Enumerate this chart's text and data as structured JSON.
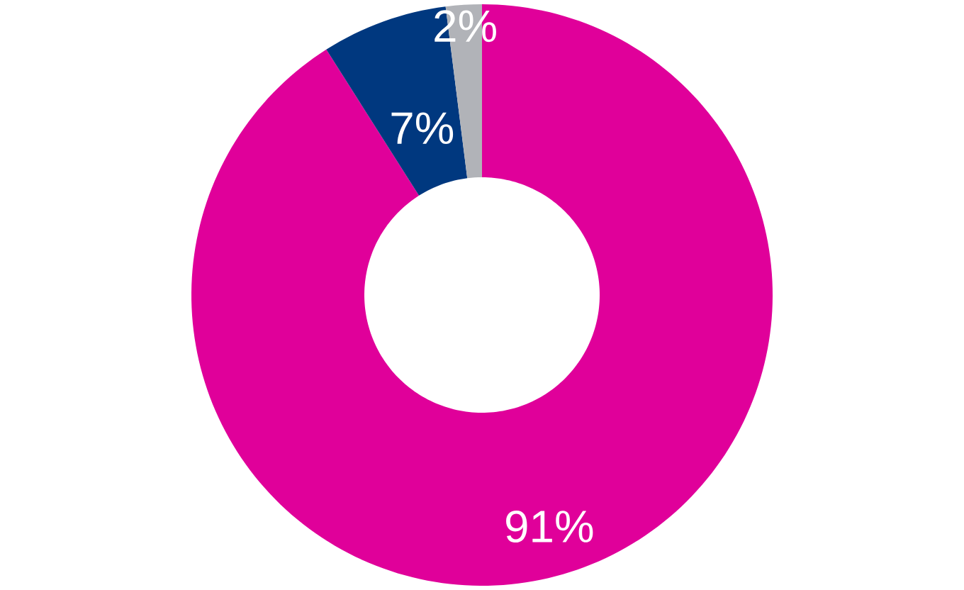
{
  "chart_data": {
    "type": "donut",
    "categories": [
      null,
      null,
      null
    ],
    "values": [
      91,
      7,
      2
    ],
    "colors": [
      "#e0009a",
      "#00387f",
      "#b1b3b8"
    ],
    "value_labels": [
      "91%",
      "7%",
      "2%"
    ]
  }
}
